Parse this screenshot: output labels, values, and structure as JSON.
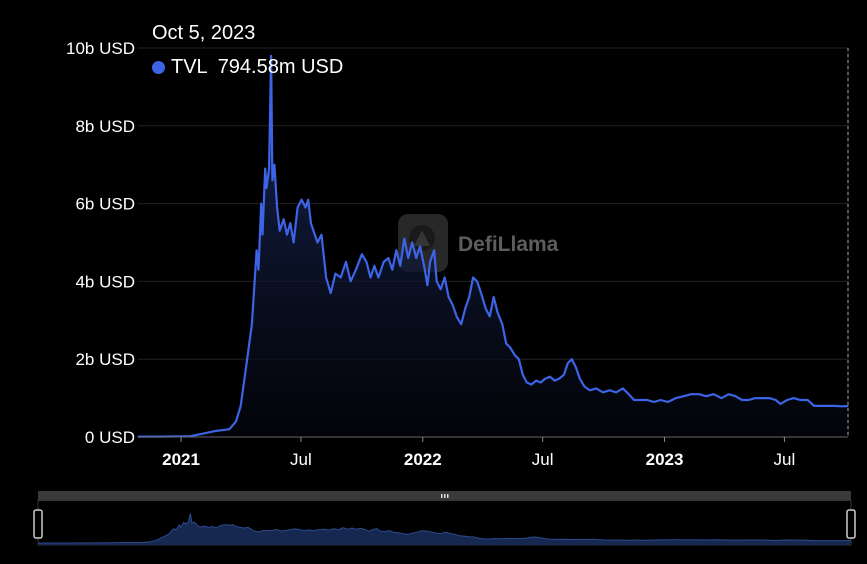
{
  "tooltip": {
    "date": "Oct 5, 2023",
    "series": "TVL",
    "value": "794.58m USD"
  },
  "watermark": "DefiLlama",
  "colors": {
    "line": "#3d64e6",
    "background": "#000000",
    "grid": "#222222",
    "axis_text": "#ffffff",
    "area_top": "#1a2a5e",
    "area_bottom": "#05070f",
    "slider_bg": "#3a3a3a",
    "navigator_fill": "#16284f",
    "navigator_line": "#2c4a8c"
  },
  "chart_data": {
    "type": "area",
    "title": "",
    "xlabel": "",
    "ylabel": "",
    "ylim": [
      0,
      10
    ],
    "y_unit": "b USD",
    "y_ticks": [
      {
        "value": 0,
        "label": "0 USD"
      },
      {
        "value": 2,
        "label": "2b USD"
      },
      {
        "value": 4,
        "label": "4b USD"
      },
      {
        "value": 6,
        "label": "6b USD"
      },
      {
        "value": 8,
        "label": "8b USD"
      },
      {
        "value": 10,
        "label": "10b USD"
      }
    ],
    "x_range": [
      "2020-10-28",
      "2023-10-05"
    ],
    "x_ticks": [
      {
        "date": "2021-01-01",
        "label": "2021",
        "bold": true
      },
      {
        "date": "2021-07-01",
        "label": "Jul",
        "bold": false
      },
      {
        "date": "2022-01-01",
        "label": "2022",
        "bold": true
      },
      {
        "date": "2022-07-01",
        "label": "Jul",
        "bold": false
      },
      {
        "date": "2023-01-01",
        "label": "2023",
        "bold": true
      },
      {
        "date": "2023-07-01",
        "label": "Jul",
        "bold": false
      }
    ],
    "grid": true,
    "crosshair_date": "2023-10-05",
    "series": [
      {
        "name": "TVL",
        "points": [
          [
            "2020-10-28",
            0.01
          ],
          [
            "2020-12-01",
            0.01
          ],
          [
            "2021-01-15",
            0.02
          ],
          [
            "2021-02-01",
            0.08
          ],
          [
            "2021-02-20",
            0.15
          ],
          [
            "2021-03-15",
            0.2
          ],
          [
            "2021-03-25",
            0.4
          ],
          [
            "2021-04-01",
            0.8
          ],
          [
            "2021-04-10",
            1.9
          ],
          [
            "2021-04-18",
            2.9
          ],
          [
            "2021-04-25",
            4.8
          ],
          [
            "2021-04-28",
            4.3
          ],
          [
            "2021-05-02",
            6.0
          ],
          [
            "2021-05-04",
            5.2
          ],
          [
            "2021-05-08",
            6.9
          ],
          [
            "2021-05-10",
            6.4
          ],
          [
            "2021-05-14",
            6.9
          ],
          [
            "2021-05-17",
            9.8
          ],
          [
            "2021-05-19",
            6.6
          ],
          [
            "2021-05-22",
            7.0
          ],
          [
            "2021-05-26",
            5.9
          ],
          [
            "2021-05-30",
            5.3
          ],
          [
            "2021-06-05",
            5.6
          ],
          [
            "2021-06-10",
            5.2
          ],
          [
            "2021-06-15",
            5.5
          ],
          [
            "2021-06-20",
            5.0
          ],
          [
            "2021-06-26",
            5.9
          ],
          [
            "2021-07-02",
            6.1
          ],
          [
            "2021-07-08",
            5.9
          ],
          [
            "2021-07-12",
            6.1
          ],
          [
            "2021-07-16",
            5.5
          ],
          [
            "2021-07-20",
            5.3
          ],
          [
            "2021-07-26",
            5.0
          ],
          [
            "2021-08-01",
            5.2
          ],
          [
            "2021-08-08",
            4.1
          ],
          [
            "2021-08-15",
            3.7
          ],
          [
            "2021-08-22",
            4.2
          ],
          [
            "2021-08-30",
            4.1
          ],
          [
            "2021-09-07",
            4.5
          ],
          [
            "2021-09-14",
            4.0
          ],
          [
            "2021-09-22",
            4.3
          ],
          [
            "2021-10-01",
            4.7
          ],
          [
            "2021-10-08",
            4.5
          ],
          [
            "2021-10-14",
            4.1
          ],
          [
            "2021-10-20",
            4.4
          ],
          [
            "2021-10-26",
            4.1
          ],
          [
            "2021-11-03",
            4.5
          ],
          [
            "2021-11-10",
            4.6
          ],
          [
            "2021-11-16",
            4.3
          ],
          [
            "2021-11-22",
            4.8
          ],
          [
            "2021-11-28",
            4.4
          ],
          [
            "2021-12-04",
            5.1
          ],
          [
            "2021-12-10",
            4.6
          ],
          [
            "2021-12-16",
            5.0
          ],
          [
            "2021-12-22",
            4.6
          ],
          [
            "2021-12-28",
            4.9
          ],
          [
            "2022-01-04",
            4.3
          ],
          [
            "2022-01-08",
            3.9
          ],
          [
            "2022-01-12",
            4.5
          ],
          [
            "2022-01-18",
            4.8
          ],
          [
            "2022-01-22",
            4.0
          ],
          [
            "2022-01-28",
            3.8
          ],
          [
            "2022-02-03",
            4.1
          ],
          [
            "2022-02-09",
            3.6
          ],
          [
            "2022-02-15",
            3.4
          ],
          [
            "2022-02-21",
            3.1
          ],
          [
            "2022-02-28",
            2.9
          ],
          [
            "2022-03-06",
            3.3
          ],
          [
            "2022-03-12",
            3.6
          ],
          [
            "2022-03-18",
            4.1
          ],
          [
            "2022-03-24",
            4.0
          ],
          [
            "2022-03-30",
            3.7
          ],
          [
            "2022-04-06",
            3.3
          ],
          [
            "2022-04-12",
            3.1
          ],
          [
            "2022-04-18",
            3.6
          ],
          [
            "2022-04-24",
            3.2
          ],
          [
            "2022-05-01",
            2.9
          ],
          [
            "2022-05-07",
            2.4
          ],
          [
            "2022-05-13",
            2.3
          ],
          [
            "2022-05-20",
            2.1
          ],
          [
            "2022-05-26",
            2.0
          ],
          [
            "2022-06-01",
            1.6
          ],
          [
            "2022-06-07",
            1.4
          ],
          [
            "2022-06-14",
            1.35
          ],
          [
            "2022-06-21",
            1.45
          ],
          [
            "2022-06-28",
            1.4
          ],
          [
            "2022-07-05",
            1.5
          ],
          [
            "2022-07-12",
            1.55
          ],
          [
            "2022-07-19",
            1.45
          ],
          [
            "2022-07-26",
            1.5
          ],
          [
            "2022-08-02",
            1.6
          ],
          [
            "2022-08-08",
            1.9
          ],
          [
            "2022-08-14",
            2.0
          ],
          [
            "2022-08-20",
            1.8
          ],
          [
            "2022-08-26",
            1.5
          ],
          [
            "2022-09-02",
            1.3
          ],
          [
            "2022-09-10",
            1.2
          ],
          [
            "2022-09-20",
            1.25
          ],
          [
            "2022-09-30",
            1.15
          ],
          [
            "2022-10-10",
            1.2
          ],
          [
            "2022-10-20",
            1.15
          ],
          [
            "2022-10-30",
            1.25
          ],
          [
            "2022-11-08",
            1.1
          ],
          [
            "2022-11-16",
            0.95
          ],
          [
            "2022-11-26",
            0.95
          ],
          [
            "2022-12-06",
            0.95
          ],
          [
            "2022-12-16",
            0.9
          ],
          [
            "2022-12-26",
            0.95
          ],
          [
            "2023-01-06",
            0.9
          ],
          [
            "2023-01-18",
            1.0
          ],
          [
            "2023-01-30",
            1.05
          ],
          [
            "2023-02-10",
            1.1
          ],
          [
            "2023-02-22",
            1.1
          ],
          [
            "2023-03-05",
            1.05
          ],
          [
            "2023-03-16",
            1.1
          ],
          [
            "2023-03-28",
            1.0
          ],
          [
            "2023-04-08",
            1.1
          ],
          [
            "2023-04-18",
            1.05
          ],
          [
            "2023-04-28",
            0.95
          ],
          [
            "2023-05-08",
            0.95
          ],
          [
            "2023-05-18",
            1.0
          ],
          [
            "2023-05-28",
            1.0
          ],
          [
            "2023-06-08",
            1.0
          ],
          [
            "2023-06-18",
            0.95
          ],
          [
            "2023-06-25",
            0.85
          ],
          [
            "2023-07-05",
            0.95
          ],
          [
            "2023-07-15",
            1.0
          ],
          [
            "2023-07-25",
            0.95
          ],
          [
            "2023-08-05",
            0.95
          ],
          [
            "2023-08-15",
            0.8
          ],
          [
            "2023-08-25",
            0.8
          ],
          [
            "2023-09-05",
            0.8
          ],
          [
            "2023-09-15",
            0.8
          ],
          [
            "2023-09-25",
            0.79
          ],
          [
            "2023-10-05",
            0.79458
          ]
        ]
      }
    ]
  }
}
